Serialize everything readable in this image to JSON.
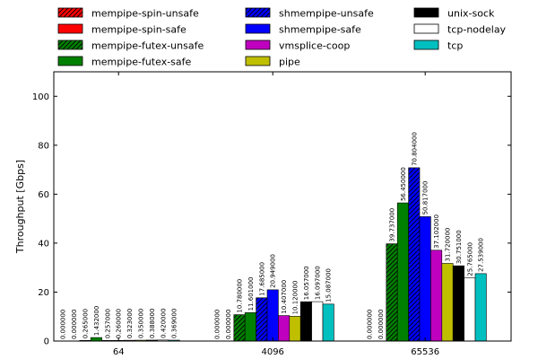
{
  "chart_data": {
    "type": "bar",
    "title": "",
    "xlabel": "",
    "ylabel": "Throughput [Gbps]",
    "ylim": [
      0,
      110
    ],
    "yticks": [
      0,
      20,
      40,
      60,
      80,
      100
    ],
    "grid": false,
    "legend_position": "top",
    "categories": [
      "64",
      "4096",
      "65536"
    ],
    "series": [
      {
        "name": "mempipe-spin-unsafe",
        "color": "#ff0000",
        "hatch": "diag",
        "values": [
          0.0,
          0.0,
          0.0
        ],
        "labels": [
          "0.000000",
          "0.000000",
          "0.000000"
        ]
      },
      {
        "name": "mempipe-spin-safe",
        "color": "#ff0000",
        "hatch": "none",
        "values": [
          0.0,
          0.0,
          0.0
        ],
        "labels": [
          "0.000000",
          "0.000000",
          "0.000000"
        ]
      },
      {
        "name": "mempipe-futex-unsafe",
        "color": "#008000",
        "hatch": "diag",
        "values": [
          0.265,
          10.78,
          39.737
        ],
        "labels": [
          "0.265000",
          "10.780000",
          "39.737000"
        ]
      },
      {
        "name": "mempipe-futex-safe",
        "color": "#008000",
        "hatch": "none",
        "values": [
          1.432,
          11.601,
          56.45
        ],
        "labels": [
          "1.432000",
          "11.601000",
          "56.450000"
        ]
      },
      {
        "name": "shmempipe-unsafe",
        "color": "#0000ff",
        "hatch": "diag",
        "values": [
          0.257,
          17.685,
          70.804
        ],
        "labels": [
          "0.257000",
          "17.685000",
          "70.804000"
        ]
      },
      {
        "name": "shmempipe-safe",
        "color": "#0000ff",
        "hatch": "none",
        "values": [
          0.26,
          20.949,
          50.817
        ],
        "labels": [
          "0.260000",
          "20.949000",
          "50.817000"
        ]
      },
      {
        "name": "vmsplice-coop",
        "color": "#bf00bf",
        "hatch": "none",
        "values": [
          0.323,
          10.407,
          37.102
        ],
        "labels": [
          "0.323000",
          "10.407000",
          "37.102000"
        ]
      },
      {
        "name": "pipe",
        "color": "#bfbf00",
        "hatch": "none",
        "values": [
          0.35,
          10.12,
          31.72
        ],
        "labels": [
          "0.350000",
          "10.120000",
          "31.720000"
        ]
      },
      {
        "name": "unix-sock",
        "color": "#000000",
        "hatch": "none",
        "values": [
          0.388,
          16.057,
          30.751
        ],
        "labels": [
          "0.388000",
          "16.057000",
          "30.751000"
        ]
      },
      {
        "name": "tcp-nodelay",
        "color": "#ffffff",
        "hatch": "none",
        "values": [
          0.42,
          16.097,
          25.765
        ],
        "labels": [
          "0.420000",
          "16.097000",
          "25.765000"
        ]
      },
      {
        "name": "tcp",
        "color": "#00bfbf",
        "hatch": "none",
        "values": [
          0.369,
          15.087,
          27.539
        ],
        "labels": [
          "0.369000",
          "15.087000",
          "27.539000"
        ]
      }
    ]
  }
}
